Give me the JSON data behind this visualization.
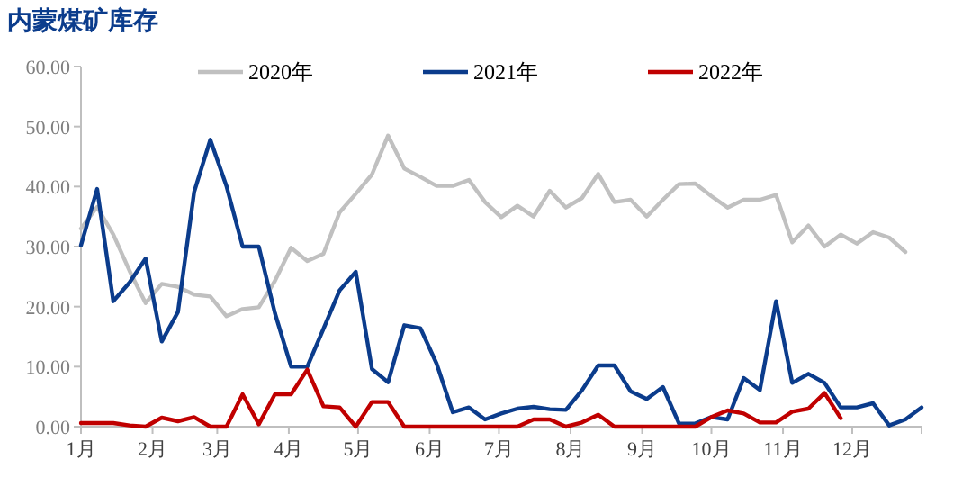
{
  "chart_data": {
    "type": "line",
    "title": "内蒙煤矿库存",
    "x": [
      "--01-01",
      "--01-08",
      "--01-15",
      "--01-22",
      "--01-29",
      "--02-05",
      "--02-12",
      "--02-19",
      "--02-26",
      "--03-05",
      "--03-12",
      "--03-19",
      "--03-26",
      "--04-02",
      "--04-09",
      "--04-16",
      "--04-23",
      "--04-30",
      "--05-07",
      "--05-14",
      "--05-21",
      "--05-28",
      "--06-04",
      "--06-11",
      "--06-18",
      "--06-25",
      "--07-02",
      "--07-09",
      "--07-16",
      "--07-23",
      "--07-30",
      "--08-06",
      "--08-13",
      "--08-20",
      "--08-27",
      "--09-03",
      "--09-10",
      "--09-17",
      "--09-24",
      "--10-01",
      "--10-08",
      "--10-15",
      "--10-22",
      "--10-29",
      "--11-05",
      "--11-12",
      "--11-19",
      "--11-26",
      "--12-03",
      "--12-10",
      "--12-17",
      "--12-24",
      "--12-31"
    ],
    "series": [
      {
        "name": "2020年",
        "color": "#c0c0c0",
        "values": [
          33,
          36.6,
          32,
          26,
          20.6,
          23.8,
          23.3,
          22,
          21.7,
          18.4,
          19.6,
          19.9,
          24.3,
          29.8,
          27.6,
          28.8,
          35.7,
          38.8,
          42,
          48.5,
          43,
          41.6,
          40.1,
          40.1,
          41.1,
          37.4,
          34.9,
          36.8,
          35,
          39.3,
          36.5,
          38.1,
          42.1,
          37.4,
          37.8,
          35,
          37.8,
          40.4,
          40.5,
          38.4,
          36.5,
          37.8,
          37.8,
          38.6,
          30.7,
          33.5,
          30,
          32,
          30.5,
          32.4,
          31.5,
          29.1,
          null
        ]
      },
      {
        "name": "2021年",
        "color": "#0b3c8c",
        "values": [
          30.2,
          39.6,
          20.9,
          24,
          28,
          14.2,
          19.1,
          39.1,
          47.8,
          40.1,
          30,
          30,
          18.9,
          10,
          10,
          16.3,
          22.7,
          25.8,
          9.6,
          7.4,
          16.9,
          16.4,
          10.5,
          2.4,
          3.2,
          1.2,
          2.2,
          3,
          3.3,
          2.9,
          2.8,
          6.1,
          10.2,
          10.2,
          5.9,
          4.6,
          6.6,
          0.5,
          0.5,
          1.6,
          1.2,
          8.1,
          6.1,
          20.9,
          7.3,
          8.8,
          7.3,
          3.2,
          3.2,
          3.9,
          0.2,
          1.2,
          3.2
        ]
      },
      {
        "name": "2022年",
        "color": "#c00000",
        "values": [
          0.6,
          0.6,
          0.6,
          0.2,
          0,
          1.5,
          0.9,
          1.6,
          0,
          0,
          5.4,
          0.4,
          5.4,
          5.4,
          9.5,
          3.4,
          3.2,
          0,
          4.1,
          4.1,
          0,
          0,
          0,
          0,
          0,
          0,
          0,
          0,
          1.2,
          1.2,
          0,
          0.7,
          2,
          0,
          0,
          0,
          0,
          0,
          0,
          1.6,
          2.7,
          2.2,
          0.7,
          0.7,
          2.5,
          3,
          5.6,
          1.4,
          null,
          null,
          null,
          null,
          null
        ]
      }
    ],
    "xlim": [
      "--01-01",
      "--12-31"
    ],
    "xticks": [
      {
        "value": "--01-01",
        "label": "1月"
      },
      {
        "value": "--02-01",
        "label": "2月"
      },
      {
        "value": "--03-01",
        "label": "3月"
      },
      {
        "value": "--04-01",
        "label": "4月"
      },
      {
        "value": "--05-01",
        "label": "5月"
      },
      {
        "value": "--06-01",
        "label": "6月"
      },
      {
        "value": "--07-01",
        "label": "7月"
      },
      {
        "value": "--08-01",
        "label": "8月"
      },
      {
        "value": "--09-01",
        "label": "9月"
      },
      {
        "value": "--10-01",
        "label": "10月"
      },
      {
        "value": "--11-01",
        "label": "11月"
      },
      {
        "value": "--12-01",
        "label": "12月"
      },
      {
        "value": "--12-31",
        "label": null
      }
    ],
    "ylim": [
      0,
      60
    ],
    "yticks": [
      {
        "value": 0,
        "label": "0.00"
      },
      {
        "value": 10,
        "label": "10.00"
      },
      {
        "value": 20,
        "label": "20.00"
      },
      {
        "value": 30,
        "label": "30.00"
      },
      {
        "value": 40,
        "label": "40.00"
      },
      {
        "value": 50,
        "label": "50.00"
      },
      {
        "value": 60,
        "label": "60.00"
      }
    ],
    "grid": false,
    "legend": "top",
    "marker": "none",
    "line_style": "solid"
  }
}
